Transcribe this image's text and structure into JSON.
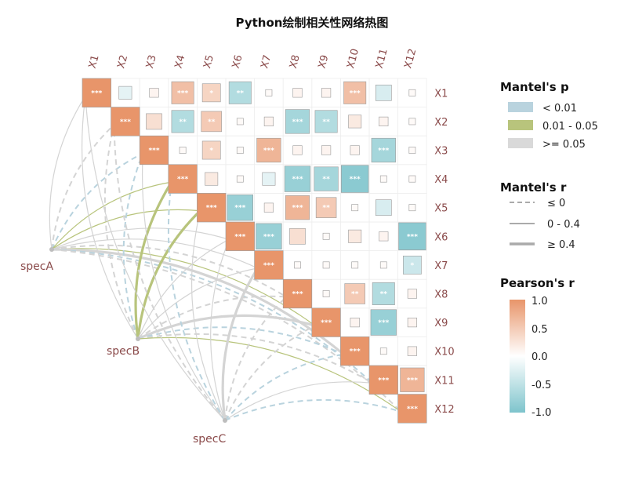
{
  "title": "Python绘制相关性网络热图",
  "colors": {
    "positive": "#e8956a",
    "negative": "#7ec4cc",
    "neutral": "#ffffff",
    "mantel_p_lt001": "#b9d3de",
    "mantel_p_001_005": "#b8c47c",
    "mantel_p_ge005": "#d9d9d9",
    "label": "#8a4a4a"
  },
  "chart_data": {
    "type": "heatmap",
    "variables": [
      "X1",
      "X2",
      "X3",
      "X4",
      "X5",
      "X6",
      "X7",
      "X8",
      "X9",
      "X10",
      "X11",
      "X12"
    ],
    "cells": [
      {
        "row": "X1",
        "col": "X1",
        "r": 1.0,
        "sig": "***"
      },
      {
        "row": "X1",
        "col": "X2",
        "r": -0.2,
        "sig": ""
      },
      {
        "row": "X1",
        "col": "X3",
        "r": 0.1,
        "sig": ""
      },
      {
        "row": "X1",
        "col": "X4",
        "r": 0.6,
        "sig": "***"
      },
      {
        "row": "X1",
        "col": "X5",
        "r": 0.4,
        "sig": "*"
      },
      {
        "row": "X1",
        "col": "X6",
        "r": -0.6,
        "sig": "**"
      },
      {
        "row": "X1",
        "col": "X7",
        "r": 0.05,
        "sig": ""
      },
      {
        "row": "X1",
        "col": "X8",
        "r": 0.1,
        "sig": ""
      },
      {
        "row": "X1",
        "col": "X9",
        "r": 0.1,
        "sig": ""
      },
      {
        "row": "X1",
        "col": "X10",
        "r": 0.6,
        "sig": "***"
      },
      {
        "row": "X1",
        "col": "X11",
        "r": -0.3,
        "sig": ""
      },
      {
        "row": "X1",
        "col": "X12",
        "r": 0.05,
        "sig": ""
      },
      {
        "row": "X2",
        "col": "X2",
        "r": 1.0,
        "sig": "***"
      },
      {
        "row": "X2",
        "col": "X3",
        "r": 0.3,
        "sig": ""
      },
      {
        "row": "X2",
        "col": "X4",
        "r": -0.6,
        "sig": "**"
      },
      {
        "row": "X2",
        "col": "X5",
        "r": 0.5,
        "sig": "**"
      },
      {
        "row": "X2",
        "col": "X6",
        "r": 0.05,
        "sig": ""
      },
      {
        "row": "X2",
        "col": "X7",
        "r": 0.1,
        "sig": ""
      },
      {
        "row": "X2",
        "col": "X8",
        "r": -0.7,
        "sig": "***"
      },
      {
        "row": "X2",
        "col": "X9",
        "r": -0.6,
        "sig": "**"
      },
      {
        "row": "X2",
        "col": "X10",
        "r": 0.2,
        "sig": ""
      },
      {
        "row": "X2",
        "col": "X11",
        "r": 0.1,
        "sig": ""
      },
      {
        "row": "X2",
        "col": "X12",
        "r": 0.05,
        "sig": ""
      },
      {
        "row": "X3",
        "col": "X3",
        "r": 1.0,
        "sig": "***"
      },
      {
        "row": "X3",
        "col": "X4",
        "r": 0.05,
        "sig": ""
      },
      {
        "row": "X3",
        "col": "X5",
        "r": 0.4,
        "sig": "*"
      },
      {
        "row": "X3",
        "col": "X6",
        "r": 0.05,
        "sig": ""
      },
      {
        "row": "X3",
        "col": "X7",
        "r": 0.7,
        "sig": "***"
      },
      {
        "row": "X3",
        "col": "X8",
        "r": 0.1,
        "sig": ""
      },
      {
        "row": "X3",
        "col": "X9",
        "r": 0.1,
        "sig": ""
      },
      {
        "row": "X3",
        "col": "X10",
        "r": 0.1,
        "sig": ""
      },
      {
        "row": "X3",
        "col": "X11",
        "r": -0.7,
        "sig": "***"
      },
      {
        "row": "X3",
        "col": "X12",
        "r": 0.05,
        "sig": ""
      },
      {
        "row": "X4",
        "col": "X4",
        "r": 1.0,
        "sig": "***"
      },
      {
        "row": "X4",
        "col": "X5",
        "r": 0.2,
        "sig": ""
      },
      {
        "row": "X4",
        "col": "X6",
        "r": 0.05,
        "sig": ""
      },
      {
        "row": "X4",
        "col": "X7",
        "r": -0.2,
        "sig": ""
      },
      {
        "row": "X4",
        "col": "X8",
        "r": -0.8,
        "sig": "***"
      },
      {
        "row": "X4",
        "col": "X9",
        "r": -0.7,
        "sig": "**"
      },
      {
        "row": "X4",
        "col": "X10",
        "r": -0.9,
        "sig": "***"
      },
      {
        "row": "X4",
        "col": "X11",
        "r": 0.05,
        "sig": ""
      },
      {
        "row": "X4",
        "col": "X12",
        "r": 0.05,
        "sig": ""
      },
      {
        "row": "X5",
        "col": "X5",
        "r": 1.0,
        "sig": "***"
      },
      {
        "row": "X5",
        "col": "X6",
        "r": -0.8,
        "sig": "***"
      },
      {
        "row": "X5",
        "col": "X7",
        "r": 0.1,
        "sig": ""
      },
      {
        "row": "X5",
        "col": "X8",
        "r": 0.7,
        "sig": "***"
      },
      {
        "row": "X5",
        "col": "X9",
        "r": 0.5,
        "sig": "**"
      },
      {
        "row": "X5",
        "col": "X10",
        "r": 0.05,
        "sig": ""
      },
      {
        "row": "X5",
        "col": "X11",
        "r": -0.3,
        "sig": ""
      },
      {
        "row": "X5",
        "col": "X12",
        "r": 0.05,
        "sig": ""
      },
      {
        "row": "X6",
        "col": "X6",
        "r": 1.0,
        "sig": "***"
      },
      {
        "row": "X6",
        "col": "X7",
        "r": -0.8,
        "sig": "***"
      },
      {
        "row": "X6",
        "col": "X8",
        "r": 0.3,
        "sig": ""
      },
      {
        "row": "X6",
        "col": "X9",
        "r": 0.05,
        "sig": ""
      },
      {
        "row": "X6",
        "col": "X10",
        "r": 0.2,
        "sig": ""
      },
      {
        "row": "X6",
        "col": "X11",
        "r": 0.1,
        "sig": ""
      },
      {
        "row": "X6",
        "col": "X12",
        "r": -0.9,
        "sig": "***"
      },
      {
        "row": "X7",
        "col": "X7",
        "r": 1.0,
        "sig": "***"
      },
      {
        "row": "X7",
        "col": "X8",
        "r": 0.05,
        "sig": ""
      },
      {
        "row": "X7",
        "col": "X9",
        "r": 0.05,
        "sig": ""
      },
      {
        "row": "X7",
        "col": "X10",
        "r": 0.05,
        "sig": ""
      },
      {
        "row": "X7",
        "col": "X11",
        "r": 0.05,
        "sig": ""
      },
      {
        "row": "X7",
        "col": "X12",
        "r": -0.4,
        "sig": "*"
      },
      {
        "row": "X8",
        "col": "X8",
        "r": 1.0,
        "sig": "***"
      },
      {
        "row": "X8",
        "col": "X9",
        "r": 0.05,
        "sig": ""
      },
      {
        "row": "X8",
        "col": "X10",
        "r": 0.5,
        "sig": "**"
      },
      {
        "row": "X8",
        "col": "X11",
        "r": -0.6,
        "sig": "**"
      },
      {
        "row": "X8",
        "col": "X12",
        "r": 0.1,
        "sig": ""
      },
      {
        "row": "X9",
        "col": "X9",
        "r": 1.0,
        "sig": "***"
      },
      {
        "row": "X9",
        "col": "X10",
        "r": 0.1,
        "sig": ""
      },
      {
        "row": "X9",
        "col": "X11",
        "r": -0.8,
        "sig": "***"
      },
      {
        "row": "X9",
        "col": "X12",
        "r": 0.1,
        "sig": ""
      },
      {
        "row": "X10",
        "col": "X10",
        "r": 1.0,
        "sig": "***"
      },
      {
        "row": "X10",
        "col": "X11",
        "r": 0.05,
        "sig": ""
      },
      {
        "row": "X10",
        "col": "X12",
        "r": 0.1,
        "sig": ""
      },
      {
        "row": "X11",
        "col": "X11",
        "r": 1.0,
        "sig": "***"
      },
      {
        "row": "X11",
        "col": "X12",
        "r": 0.7,
        "sig": "***"
      },
      {
        "row": "X12",
        "col": "X12",
        "r": 1.0,
        "sig": "***"
      }
    ],
    "specs": [
      "specA",
      "specB",
      "specC"
    ],
    "links": [
      {
        "spec": "specA",
        "var": "X1",
        "r_class": "0-0.4",
        "p_class": "ge0.05"
      },
      {
        "spec": "specA",
        "var": "X2",
        "r_class": "le0",
        "p_class": "ge0.05"
      },
      {
        "spec": "specA",
        "var": "X3",
        "r_class": "le0",
        "p_class": "lt0.01"
      },
      {
        "spec": "specA",
        "var": "X4",
        "r_class": "0-0.4",
        "p_class": "0.01-0.05"
      },
      {
        "spec": "specA",
        "var": "X5",
        "r_class": "0-0.4",
        "p_class": "0.01-0.05"
      },
      {
        "spec": "specA",
        "var": "X6",
        "r_class": "0-0.4",
        "p_class": "ge0.05"
      },
      {
        "spec": "specA",
        "var": "X7",
        "r_class": "0-0.4",
        "p_class": "ge0.05"
      },
      {
        "spec": "specA",
        "var": "X8",
        "r_class": "le0",
        "p_class": "ge0.05"
      },
      {
        "spec": "specA",
        "var": "X9",
        "r_class": "0-0.4",
        "p_class": "0.01-0.05"
      },
      {
        "spec": "specA",
        "var": "X10",
        "r_class": "ge0.4",
        "p_class": "ge0.05"
      },
      {
        "spec": "specA",
        "var": "X11",
        "r_class": "le0",
        "p_class": "lt0.01"
      },
      {
        "spec": "specA",
        "var": "X12",
        "r_class": "le0",
        "p_class": "ge0.05"
      },
      {
        "spec": "specB",
        "var": "X1",
        "r_class": "0-0.4",
        "p_class": "ge0.05"
      },
      {
        "spec": "specB",
        "var": "X2",
        "r_class": "le0",
        "p_class": "ge0.05"
      },
      {
        "spec": "specB",
        "var": "X3",
        "r_class": "le0",
        "p_class": "lt0.01"
      },
      {
        "spec": "specB",
        "var": "X4",
        "r_class": "ge0.4",
        "p_class": "0.01-0.05"
      },
      {
        "spec": "specB",
        "var": "X5",
        "r_class": "ge0.4",
        "p_class": "0.01-0.05"
      },
      {
        "spec": "specB",
        "var": "X6",
        "r_class": "0-0.4",
        "p_class": "ge0.05"
      },
      {
        "spec": "specB",
        "var": "X7",
        "r_class": "0-0.4",
        "p_class": "ge0.05"
      },
      {
        "spec": "specB",
        "var": "X8",
        "r_class": "le0",
        "p_class": "ge0.05"
      },
      {
        "spec": "specB",
        "var": "X9",
        "r_class": "ge0.4",
        "p_class": "ge0.05"
      },
      {
        "spec": "specB",
        "var": "X10",
        "r_class": "le0",
        "p_class": "lt0.01"
      },
      {
        "spec": "specB",
        "var": "X11",
        "r_class": "le0",
        "p_class": "ge0.05"
      },
      {
        "spec": "specB",
        "var": "X12",
        "r_class": "0-0.4",
        "p_class": "0.01-0.05"
      },
      {
        "spec": "specC",
        "var": "X1",
        "r_class": "0-0.4",
        "p_class": "ge0.05"
      },
      {
        "spec": "specC",
        "var": "X2",
        "r_class": "le0",
        "p_class": "ge0.05"
      },
      {
        "spec": "specC",
        "var": "X3",
        "r_class": "0-0.4",
        "p_class": "ge0.05"
      },
      {
        "spec": "specC",
        "var": "X4",
        "r_class": "le0",
        "p_class": "lt0.01"
      },
      {
        "spec": "specC",
        "var": "X5",
        "r_class": "0-0.4",
        "p_class": "ge0.05"
      },
      {
        "spec": "specC",
        "var": "X6",
        "r_class": "0-0.4",
        "p_class": "ge0.05"
      },
      {
        "spec": "specC",
        "var": "X7",
        "r_class": "ge0.4",
        "p_class": "ge0.05"
      },
      {
        "spec": "specC",
        "var": "X8",
        "r_class": "le0",
        "p_class": "ge0.05"
      },
      {
        "spec": "specC",
        "var": "X9",
        "r_class": "le0",
        "p_class": "ge0.05"
      },
      {
        "spec": "specC",
        "var": "X10",
        "r_class": "le0",
        "p_class": "lt0.01"
      },
      {
        "spec": "specC",
        "var": "X11",
        "r_class": "0-0.4",
        "p_class": "ge0.05"
      },
      {
        "spec": "specC",
        "var": "X12",
        "r_class": "le0",
        "p_class": "lt0.01"
      }
    ]
  },
  "legend": {
    "mantel_p": {
      "title": "Mantel's p",
      "items": [
        {
          "label": "< 0.01",
          "color": "#b9d3de"
        },
        {
          "label": "0.01 - 0.05",
          "color": "#b8c47c"
        },
        {
          "label": ">= 0.05",
          "color": "#d9d9d9"
        }
      ]
    },
    "mantel_r": {
      "title": "Mantel's r",
      "items": [
        {
          "label": "≤ 0",
          "style": "dashed"
        },
        {
          "label": "0 - 0.4",
          "style": "thin"
        },
        {
          "label": "≥ 0.4",
          "style": "thick"
        }
      ]
    },
    "pearson_r": {
      "title": "Pearson's r",
      "ticks": [
        "1.0",
        "0.5",
        "0.0",
        "-0.5",
        "-1.0"
      ]
    }
  }
}
